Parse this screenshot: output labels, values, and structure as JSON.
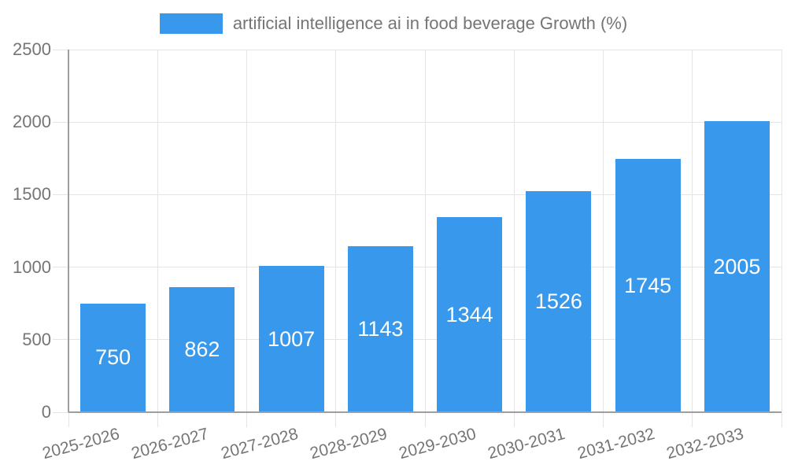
{
  "chart_data": {
    "type": "bar",
    "title": "artificial intelligence ai in food beverage Growth (%)",
    "legend": {
      "position": "top",
      "entries": [
        "artificial intelligence ai in food beverage Growth (%)"
      ]
    },
    "categories": [
      "2025-2026",
      "2026-2027",
      "2027-2028",
      "2028-2029",
      "2029-2030",
      "2030-2031",
      "2031-2032",
      "2032-2033"
    ],
    "values": [
      750,
      862,
      1007,
      1143,
      1344,
      1526,
      1745,
      2005
    ],
    "xlabel": "",
    "ylabel": "",
    "ylim": [
      0,
      2500
    ],
    "yticks": [
      0,
      500,
      1000,
      1500,
      2000,
      2500
    ],
    "grid": true,
    "value_labels": "inside-center",
    "colors": {
      "bar": "#3898EC",
      "grid": "#E4E4E4",
      "axis": "#9E9E9E",
      "text": "#757575",
      "value_label": "#FFFFFF",
      "background": "#FFFFFF"
    }
  }
}
